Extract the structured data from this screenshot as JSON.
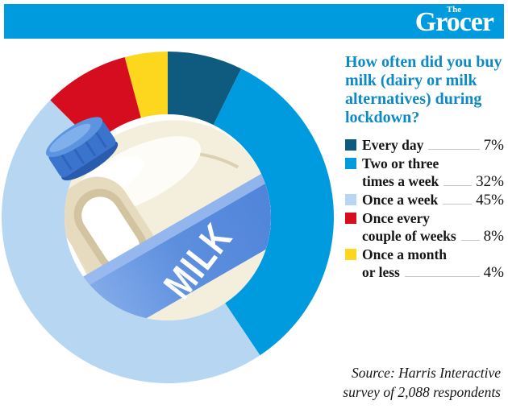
{
  "header": {
    "logo_small": "The",
    "logo_main": "Grocer",
    "bar_color": "#009ade"
  },
  "panel": {
    "title_lines": [
      "How often did you buy",
      "milk (dairy or milk",
      "alternatives) during",
      "lockdown?"
    ],
    "title_color": "#0d89c6"
  },
  "legend": {
    "items": [
      {
        "lines": [
          "Every day"
        ],
        "value": 7,
        "value_label": "7%",
        "color": "#0f5b7f"
      },
      {
        "lines": [
          "Two or three",
          "times a week"
        ],
        "value": 32,
        "value_label": "32%",
        "color": "#009ade"
      },
      {
        "lines": [
          "Once a week"
        ],
        "value": 45,
        "value_label": "45%",
        "color": "#b6d6f1"
      },
      {
        "lines": [
          "Once every",
          "couple of weeks"
        ],
        "value": 8,
        "value_label": "8%",
        "color": "#d60d1f"
      },
      {
        "lines": [
          "Once a month",
          "or less"
        ],
        "value": 4,
        "value_label": "4%",
        "color": "#fcd71e"
      }
    ]
  },
  "bottle": {
    "label": "MILK"
  },
  "source": {
    "lines": [
      "Source: Harris Interactive",
      "survey of 2,088 respondents"
    ]
  },
  "chart_data": {
    "type": "pie",
    "variant": "donut",
    "title": "How often did you buy milk (dairy or milk alternatives) during lockdown?",
    "categories": [
      "Every day",
      "Two or three times a week",
      "Once a week",
      "Once every couple of weeks",
      "Once a month or less"
    ],
    "values": [
      7,
      32,
      45,
      8,
      4
    ],
    "unit": "%",
    "colors": [
      "#0f5b7f",
      "#009ade",
      "#b6d6f1",
      "#d60d1f",
      "#fcd71e"
    ],
    "start_angle_deg": 0,
    "direction": "clockwise",
    "legend_position": "right",
    "source": "Source: Harris Interactive survey of 2,088 respondents"
  }
}
